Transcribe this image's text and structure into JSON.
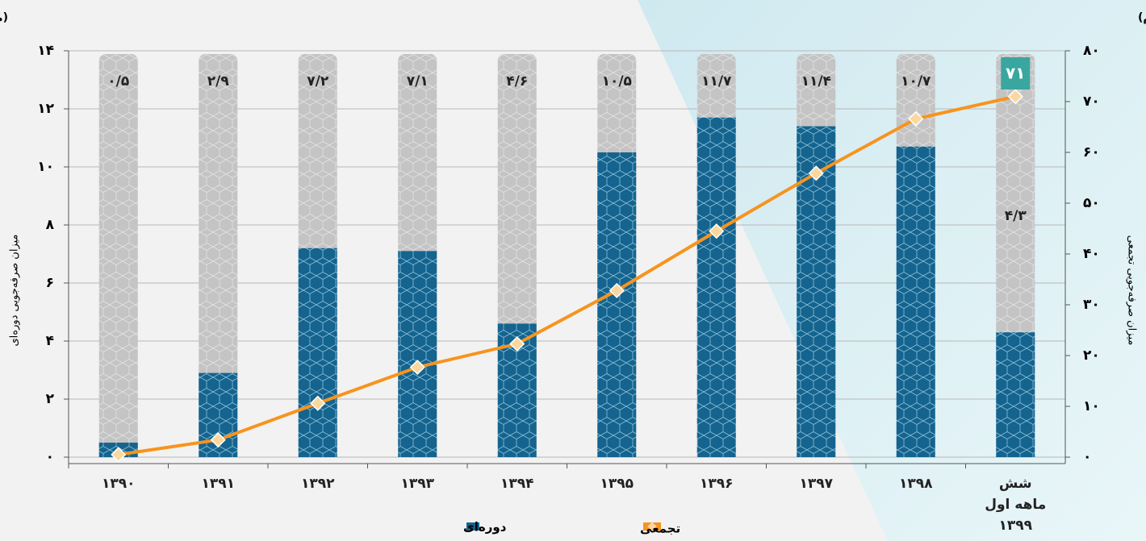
{
  "chart_data": {
    "type": "bar-line",
    "left_unit": "(میلیون  بشکه نفت خام)",
    "right_unit": "(میلیون بشکه نفت خام)",
    "y_label": "میزان صرفه‌جویی دوره‌ای",
    "y2_label": "میزان صرفه‌جویی تجمعی",
    "categories": [
      "۱۳۹۰",
      "۱۳۹۱",
      "۱۳۹۲",
      "۱۳۹۳",
      "۱۳۹۴",
      "۱۳۹۵",
      "۱۳۹۶",
      "۱۳۹۷",
      "۱۳۹۸",
      "شش ماهه اول ۱۳۹۹"
    ],
    "series": [
      {
        "name": "دوره‌ای",
        "type": "bar",
        "color": "#14648f",
        "values": [
          0.5,
          2.9,
          7.2,
          7.1,
          4.6,
          10.5,
          11.7,
          11.4,
          10.7,
          4.3
        ],
        "value_labels": [
          "۰/۵",
          "۲/۹",
          "۷/۲",
          "۷/۱",
          "۴/۶",
          "۱۰/۵",
          "۱۱/۷",
          "۱۱/۴",
          "۱۰/۷",
          "۴/۳"
        ]
      },
      {
        "name": "تجمعی",
        "type": "line",
        "axis": "y2",
        "color": "#f7941d",
        "values": [
          0.5,
          3.4,
          10.6,
          17.7,
          22.3,
          32.8,
          44.5,
          55.9,
          66.6,
          71
        ],
        "value_labels": [
          null,
          null,
          null,
          null,
          null,
          null,
          null,
          null,
          null,
          "۷۱"
        ]
      }
    ],
    "ylim": [
      0,
      14
    ],
    "yticks": [
      {
        "value": 0,
        "label": "۰"
      },
      {
        "value": 2,
        "label": "۲"
      },
      {
        "value": 4,
        "label": "۴"
      },
      {
        "value": 6,
        "label": "۶"
      },
      {
        "value": 8,
        "label": "۸"
      },
      {
        "value": 10,
        "label": "۱۰"
      },
      {
        "value": 12,
        "label": "۱۲"
      },
      {
        "value": 14,
        "label": "۱۴"
      }
    ],
    "y2lim": [
      0,
      80
    ],
    "y2ticks": [
      {
        "value": 0,
        "label": "۰"
      },
      {
        "value": 10,
        "label": "۱۰"
      },
      {
        "value": 20,
        "label": "۲۰"
      },
      {
        "value": 30,
        "label": "۳۰"
      },
      {
        "value": 40,
        "label": "۴۰"
      },
      {
        "value": 50,
        "label": "۵۰"
      },
      {
        "value": 60,
        "label": "۶۰"
      },
      {
        "value": 70,
        "label": "۷۰"
      },
      {
        "value": 80,
        "label": "۸۰"
      }
    ],
    "grid": true
  }
}
